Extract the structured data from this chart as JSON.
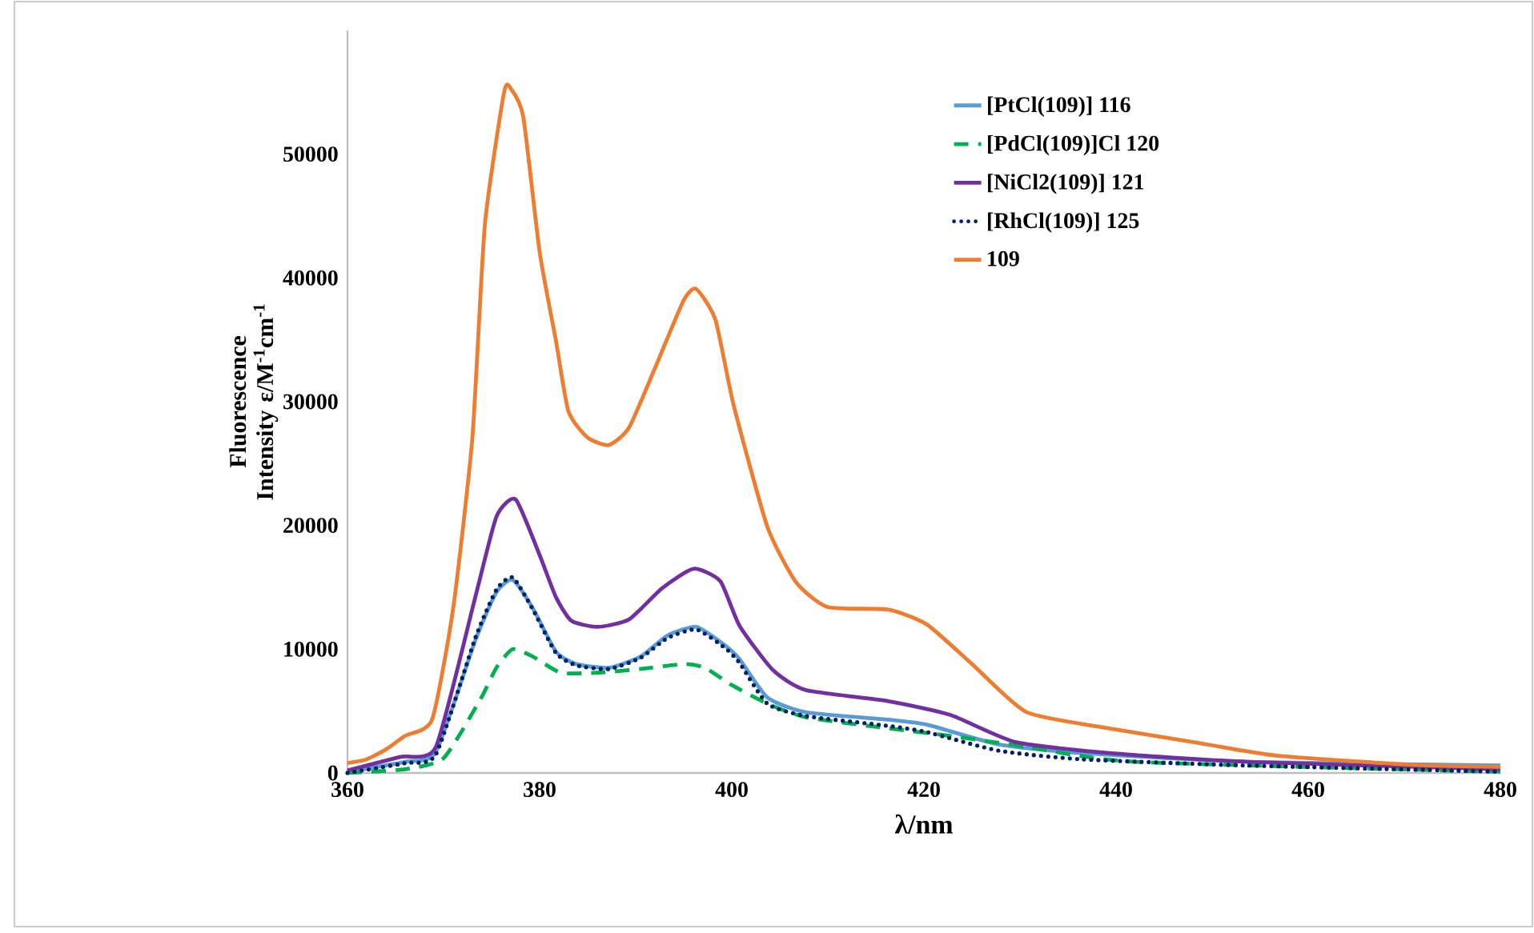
{
  "chart_data": {
    "type": "line",
    "xlabel": "λ/nm",
    "ylabel": "Fluorescence Intensity ε/M$^{-1}$cm$^{-1}$",
    "xlim": [
      360,
      480
    ],
    "xticks": [
      360,
      380,
      400,
      420,
      440,
      460,
      480
    ],
    "ylim": [
      0,
      60000
    ],
    "yticks": [
      0,
      10000,
      20000,
      30000,
      40000,
      50000
    ],
    "grid": false,
    "legend": "top right",
    "marker": "none",
    "series": [
      {
        "name": "[PtCl(109)] 116",
        "color": "#5b9bd5",
        "line_style": "solid",
        "x": [
          360,
          366,
          369.2,
          373.3,
          375.5,
          377.2,
          379.3,
          381.7,
          383.8,
          387.2,
          390.5,
          393.3,
          396.3,
          399.3,
          400.8,
          403.7,
          407.7,
          416.3,
          420.3,
          427.8,
          436.5,
          453.7,
          480
        ],
        "values": [
          100,
          900,
          1700,
          10700,
          14600,
          15600,
          13300,
          9800,
          8800,
          8500,
          9400,
          11100,
          11800,
          10300,
          9200,
          6100,
          4900,
          4300,
          3900,
          2300,
          1600,
          900,
          600
        ]
      },
      {
        "name": "[PdCl(109)]Cl 120",
        "color": "#00b050",
        "line_style": "dashed",
        "x": [
          360,
          366,
          370,
          373.8,
          375.5,
          377.2,
          379.3,
          382.2,
          386,
          390.5,
          395,
          397.2,
          400,
          403.7,
          407.7,
          416.3,
          422.7,
          430.7,
          442,
          480
        ],
        "values": [
          0,
          300,
          1200,
          5900,
          8500,
          10000,
          9400,
          8100,
          8100,
          8400,
          8800,
          8500,
          7100,
          5600,
          4500,
          3600,
          3000,
          2100,
          900,
          100
        ]
      },
      {
        "name": "[NiCl2(109)] 121",
        "color": "#7030a0",
        "line_style": "solid",
        "x": [
          360,
          365.5,
          369.2,
          373.3,
          375.5,
          377.5,
          380,
          381.7,
          383.3,
          386,
          389.3,
          392.7,
          396,
          398.8,
          400.8,
          404.3,
          407.7,
          416.3,
          422.7,
          429.5,
          439.3,
          453.7,
          480
        ],
        "values": [
          200,
          1300,
          2100,
          14200,
          20700,
          22100,
          17600,
          14200,
          12300,
          11800,
          12400,
          14900,
          16500,
          15500,
          11900,
          8300,
          6700,
          5800,
          4700,
          2500,
          1600,
          900,
          300
        ]
      },
      {
        "name": "[RhCl(109)] 125",
        "color": "#002060",
        "line_style": "dotted",
        "x": [
          360,
          366,
          369.2,
          373.3,
          375.5,
          377.2,
          379.3,
          381.7,
          383.8,
          387.2,
          390.5,
          393.3,
          396.3,
          399.3,
          400.8,
          403.7,
          407.7,
          416.3,
          420.3,
          427.8,
          436.5,
          453.7,
          480
        ],
        "values": [
          0,
          800,
          1500,
          10900,
          14800,
          15800,
          13200,
          9700,
          8700,
          8400,
          9300,
          10900,
          11600,
          10100,
          8900,
          5600,
          4600,
          3800,
          3300,
          1800,
          1100,
          600,
          100
        ]
      },
      {
        "name": "109",
        "color": "#ed7d31",
        "line_style": "solid",
        "x": [
          360,
          362,
          364,
          366,
          368.8,
          371,
          373,
          374.3,
          376.3,
          377,
          378.3,
          380,
          381.7,
          383,
          385,
          387.2,
          389.3,
          392,
          395,
          396.3,
          398.3,
          400.2,
          403.7,
          406.7,
          410,
          416.3,
          420.3,
          425,
          430.7,
          439.3,
          448,
          456.7,
          471,
          480
        ],
        "values": [
          800,
          1100,
          1900,
          3000,
          4300,
          13300,
          27100,
          44300,
          55000,
          55300,
          53000,
          42100,
          34900,
          29200,
          27100,
          26500,
          27900,
          32700,
          38200,
          39100,
          36600,
          29700,
          19900,
          15400,
          13400,
          13200,
          12000,
          8800,
          4900,
          3600,
          2500,
          1400,
          650,
          500
        ]
      }
    ]
  }
}
